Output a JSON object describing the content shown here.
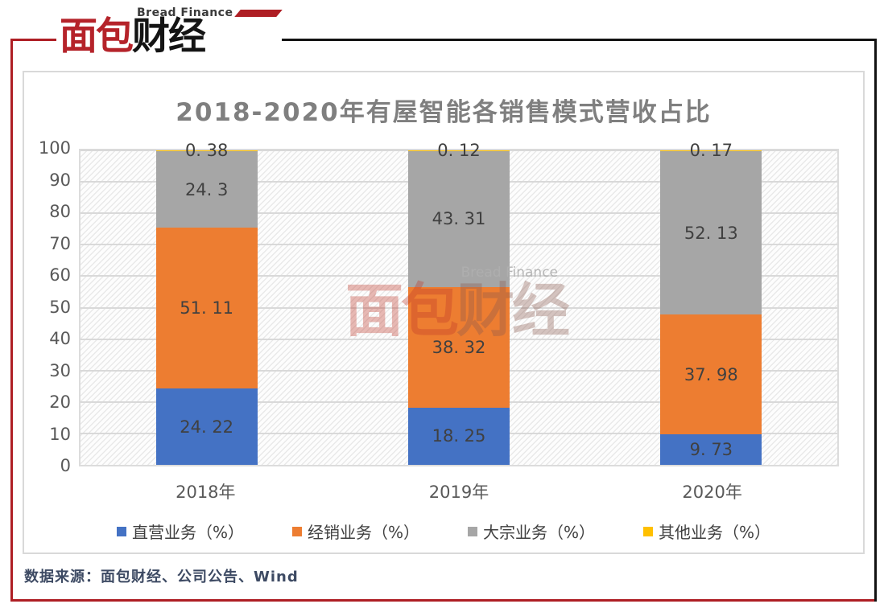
{
  "logo": {
    "brand_en": "Bread Finance",
    "brand_cn_red": "面包",
    "brand_cn_black": "财经"
  },
  "watermark": {
    "text_en": "Bread Finance",
    "text_cn_red": "面包",
    "text_cn_black": "财经"
  },
  "footer": {
    "source_line": "数据来源：面包财经、公司公告、Wind"
  },
  "colors": {
    "frame_red": "#AE1E24",
    "frame_black": "#121212",
    "title_gray": "#7F7F7F",
    "axis_gray": "#595959",
    "value_label": "#404040",
    "grid": "#D9D9D9",
    "footer_navy": "#3D4A63"
  },
  "chart_data": {
    "type": "bar",
    "stacked": true,
    "title": "2018-2020年有屋智能各销售模式营收占比",
    "categories": [
      "2018年",
      "2019年",
      "2020年"
    ],
    "series": [
      {
        "name": "直营业务（%）",
        "color": "#4472C4",
        "values": [
          24.22,
          18.25,
          9.73
        ],
        "labels": [
          "24. 22",
          "18. 25",
          "9. 73"
        ]
      },
      {
        "name": "经销业务（%）",
        "color": "#ED7D31",
        "values": [
          51.11,
          38.32,
          37.98
        ],
        "labels": [
          "51. 11",
          "38. 32",
          "37. 98"
        ]
      },
      {
        "name": "大宗业务（%）",
        "color": "#A6A6A6",
        "values": [
          24.3,
          43.31,
          52.13
        ],
        "labels": [
          "24. 3",
          "43. 31",
          "52. 13"
        ]
      },
      {
        "name": "其他业务（%）",
        "color": "#FFC000",
        "values": [
          0.38,
          0.12,
          0.17
        ],
        "labels": [
          "0. 38",
          "0. 12",
          "0. 17"
        ]
      }
    ],
    "ylim": [
      0,
      100
    ],
    "yticks": [
      0,
      10,
      20,
      30,
      40,
      50,
      60,
      70,
      80,
      90,
      100
    ],
    "grid": "horizontal",
    "legend_position": "bottom",
    "plot_background": "diagonal-hatch"
  }
}
